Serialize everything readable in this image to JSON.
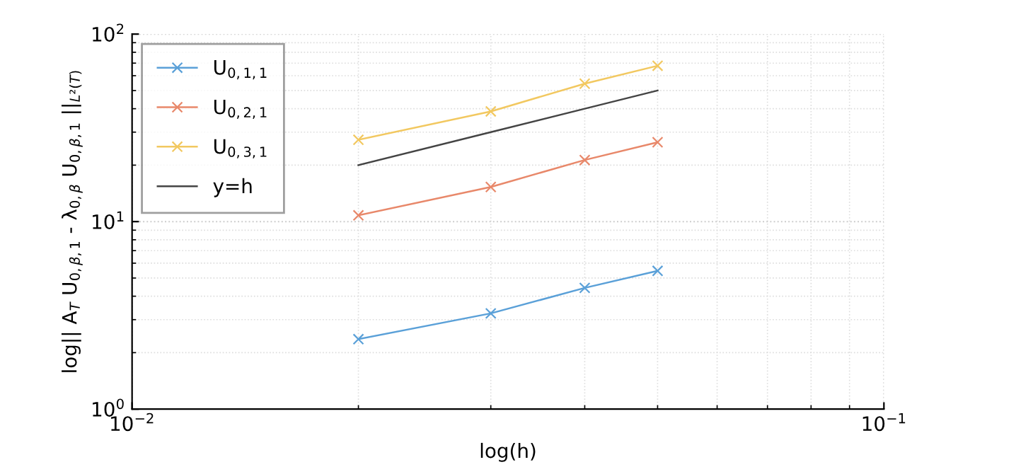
{
  "chart_data": {
    "type": "line",
    "xlabel": "log(h)",
    "ylabel": "log|| A$_{T}$ U$_{0,β,1}$ - λ$_{0,β}$ U$_{0,β,1}$ ||$_{L²(T)}$",
    "x": [
      0.02,
      0.03,
      0.04,
      0.05
    ],
    "series": [
      {
        "name": "U$_{0,1,1}$",
        "color": "#5aa0d8",
        "values": [
          2.36,
          3.24,
          4.43,
          5.46
        ],
        "marker": "cross"
      },
      {
        "name": "U$_{0,2,1}$",
        "color": "#e8886a",
        "values": [
          10.8,
          15.3,
          21.3,
          26.5
        ],
        "marker": "cross"
      },
      {
        "name": "U$_{0,3,1}$",
        "color": "#f2c860",
        "values": [
          27.3,
          38.7,
          54.4,
          67.8
        ],
        "marker": "cross"
      },
      {
        "name": "y=h",
        "color": "#444444",
        "values": [
          20,
          30,
          40,
          50
        ],
        "marker": "none"
      }
    ],
    "log": "xy",
    "xlim": [
      0.01,
      0.1
    ],
    "ylim": [
      1,
      100
    ],
    "xticks": [
      {
        "value": 0.01,
        "label": "10$^{−2}$"
      },
      {
        "value": 0.1,
        "label": "10$^{−1}$"
      }
    ],
    "yticks": [
      {
        "value": 1,
        "label": "10$^{0}$"
      },
      {
        "value": 10,
        "label": "10$^{1}$"
      },
      {
        "value": 100,
        "label": "10$^{2}$"
      }
    ],
    "grid": true,
    "legend": "top left",
    "line_style": "solid"
  }
}
